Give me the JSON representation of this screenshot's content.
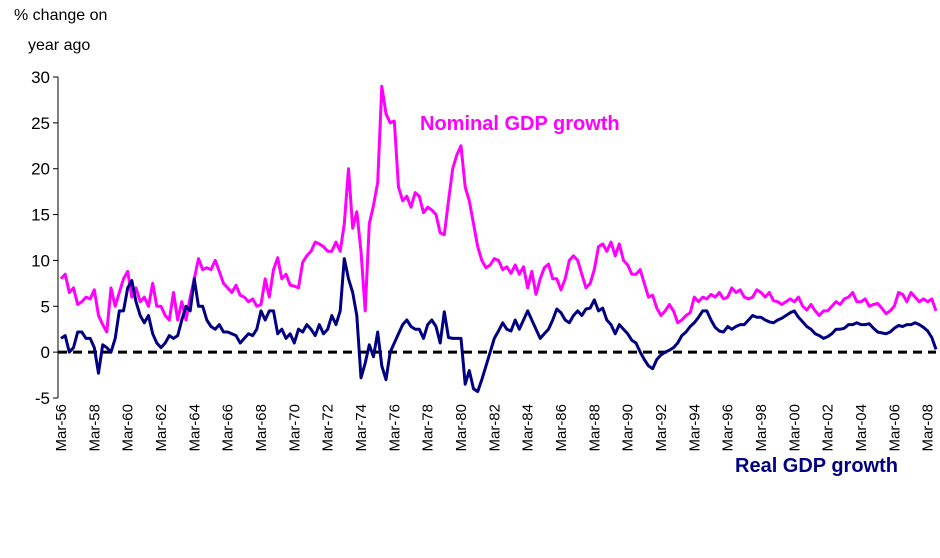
{
  "chart_data": {
    "type": "line",
    "ylabel_lines": [
      "% change on",
      "year ago"
    ],
    "ylim": [
      -5,
      30
    ],
    "yticks": [
      -5,
      0,
      5,
      10,
      15,
      20,
      25,
      30
    ],
    "hline": 0,
    "categories": [
      "Mar-56",
      null,
      null,
      null,
      null,
      null,
      null,
      null,
      "Mar-58",
      null,
      null,
      null,
      null,
      null,
      null,
      null,
      "Mar-60",
      null,
      null,
      null,
      null,
      null,
      null,
      null,
      "Mar-62",
      null,
      null,
      null,
      null,
      null,
      null,
      null,
      "Mar-64",
      null,
      null,
      null,
      null,
      null,
      null,
      null,
      "Mar-66",
      null,
      null,
      null,
      null,
      null,
      null,
      null,
      "Mar-68",
      null,
      null,
      null,
      null,
      null,
      null,
      null,
      "Mar-70",
      null,
      null,
      null,
      null,
      null,
      null,
      null,
      "Mar-72",
      null,
      null,
      null,
      null,
      null,
      null,
      null,
      "Mar-74",
      null,
      null,
      null,
      null,
      null,
      null,
      null,
      "Mar-76",
      null,
      null,
      null,
      null,
      null,
      null,
      null,
      "Mar-78",
      null,
      null,
      null,
      null,
      null,
      null,
      null,
      "Mar-80",
      null,
      null,
      null,
      null,
      null,
      null,
      null,
      "Mar-82",
      null,
      null,
      null,
      null,
      null,
      null,
      null,
      "Mar-84",
      null,
      null,
      null,
      null,
      null,
      null,
      null,
      "Mar-86",
      null,
      null,
      null,
      null,
      null,
      null,
      null,
      "Mar-88",
      null,
      null,
      null,
      null,
      null,
      null,
      null,
      "Mar-90",
      null,
      null,
      null,
      null,
      null,
      null,
      null,
      "Mar-92",
      null,
      null,
      null,
      null,
      null,
      null,
      null,
      "Mar-94",
      null,
      null,
      null,
      null,
      null,
      null,
      null,
      "Mar-96",
      null,
      null,
      null,
      null,
      null,
      null,
      null,
      "Mar-98",
      null,
      null,
      null,
      null,
      null,
      null,
      null,
      "Mar-00",
      null,
      null,
      null,
      null,
      null,
      null,
      null,
      "Mar-02",
      null,
      null,
      null,
      null,
      null,
      null,
      null,
      "Mar-04",
      null,
      null,
      null,
      null,
      null,
      null,
      null,
      "Mar-06",
      null,
      null,
      null,
      null,
      null,
      null,
      null,
      "Mar-08",
      null,
      null
    ],
    "series": [
      {
        "name": "Nominal GDP growth",
        "color": "#ff00ff",
        "values": [
          8,
          8.5,
          6.5,
          7,
          5.2,
          5.5,
          6,
          5.8,
          6.8,
          4,
          3,
          2.2,
          7,
          5,
          6.5,
          8,
          8.8,
          6,
          7,
          5.5,
          6,
          5,
          7.5,
          5,
          5,
          4,
          3.5,
          6.5,
          3.5,
          5.5,
          3.5,
          6,
          8,
          10.2,
          9,
          9.2,
          9,
          10,
          8.8,
          7.5,
          7,
          6.5,
          7.3,
          6.2,
          6,
          5.5,
          5.8,
          5,
          5.2,
          8,
          6,
          9,
          10.3,
          8,
          8.5,
          7.3,
          7.2,
          7,
          9.8,
          10.5,
          11,
          12,
          11.8,
          11.5,
          11,
          11,
          12,
          11,
          14,
          20,
          13.5,
          15.3,
          11,
          4.5,
          14,
          16,
          18.5,
          29,
          26,
          25,
          25.2,
          18,
          16.5,
          17,
          15.8,
          17.4,
          17,
          15.2,
          15.8,
          15.5,
          15,
          13,
          12.8,
          16.5,
          20,
          21.5,
          22.5,
          18,
          16.5,
          14,
          11.5,
          10,
          9.2,
          9.5,
          10.2,
          10,
          9,
          9.3,
          8.6,
          9.5,
          8.5,
          9.3,
          7,
          8.8,
          6.3,
          8,
          9.2,
          9.6,
          8,
          8,
          6.8,
          8,
          10,
          10.5,
          10,
          8.5,
          7,
          7.5,
          9,
          11.5,
          11.8,
          11,
          12,
          10.5,
          11.8,
          10,
          9.5,
          8.5,
          8.5,
          9,
          7.5,
          6,
          6.2,
          4.8,
          4,
          4.5,
          5.2,
          4.5,
          3.2,
          3.5,
          4,
          4.3,
          6,
          5.5,
          6,
          5.8,
          6.3,
          6,
          6.5,
          5.8,
          6,
          7,
          6.5,
          6.8,
          6,
          5.8,
          6,
          6.8,
          6.5,
          6,
          6.5,
          5.6,
          5.5,
          5.2,
          5.5,
          5.8,
          5.5,
          6,
          5,
          4.6,
          5.2,
          4.5,
          4,
          4.5,
          4.5,
          5,
          5.5,
          5.2,
          5.8,
          6,
          6.5,
          5.5,
          5.5,
          5.8,
          5,
          5.2,
          5.3,
          4.8,
          4.2,
          4.5,
          5,
          6.5,
          6.3,
          5.5,
          6.5,
          6,
          5.5,
          5.8,
          5.5,
          5.8,
          4.5
        ]
      },
      {
        "name": "Real GDP growth",
        "color": "#000080",
        "values": [
          1.5,
          1.8,
          0,
          0.5,
          2.2,
          2.2,
          1.5,
          1.5,
          0.5,
          -2.3,
          0.8,
          0.5,
          0,
          1.5,
          4.5,
          4.5,
          7,
          7.8,
          5.5,
          4,
          3.2,
          4,
          2,
          1,
          0.5,
          1,
          1.8,
          1.5,
          1.8,
          3.5,
          5,
          4.5,
          8,
          5,
          5,
          3.5,
          2.8,
          2.5,
          3,
          2.2,
          2.2,
          2,
          1.8,
          1,
          1.5,
          2,
          1.8,
          2.5,
          4.5,
          3.5,
          4.5,
          4.5,
          2,
          2.5,
          1.5,
          2,
          1,
          2.5,
          2.2,
          3,
          2.5,
          1.8,
          3,
          2,
          2.5,
          4,
          3,
          4.5,
          10.2,
          8,
          6.5,
          4,
          -2.8,
          -1.2,
          0.8,
          -0.5,
          2.2,
          -1.5,
          -3,
          0,
          1,
          2,
          3,
          3.5,
          2.8,
          2.5,
          2.5,
          1.5,
          3,
          3.5,
          2.8,
          1,
          4.4,
          1.6,
          1.5,
          1.5,
          1.5,
          -3.5,
          -2,
          -4,
          -4.3,
          -3,
          -1.5,
          0,
          1.5,
          2.3,
          3.2,
          2.5,
          2.3,
          3.5,
          2.5,
          3.5,
          4.5,
          3.5,
          2.5,
          1.5,
          2,
          2.5,
          3.5,
          4.7,
          4.3,
          3.5,
          3.2,
          4,
          4.5,
          4,
          4.7,
          4.8,
          5.7,
          4.5,
          4.8,
          3.5,
          3,
          2,
          3,
          2.5,
          2,
          1.3,
          1,
          0,
          -0.8,
          -1.5,
          -1.8,
          -0.8,
          -0.3,
          0,
          0.2,
          0.5,
          1,
          1.8,
          2.2,
          2.8,
          3.2,
          3.8,
          4.5,
          4.5,
          3.5,
          2.7,
          2.3,
          2.2,
          2.8,
          2.5,
          2.8,
          3,
          3,
          3.5,
          4,
          3.8,
          3.8,
          3.5,
          3.3,
          3.2,
          3.5,
          3.7,
          4,
          4.3,
          4.5,
          3.8,
          3.3,
          2.8,
          2.5,
          2,
          1.8,
          1.5,
          1.7,
          2,
          2.5,
          2.5,
          2.6,
          3,
          3,
          3.2,
          3,
          3,
          3.1,
          2.6,
          2.2,
          2.1,
          2,
          2.2,
          2.6,
          2.9,
          2.8,
          3,
          3,
          3.2,
          3,
          2.7,
          2.3,
          1.6,
          0.3
        ]
      }
    ]
  }
}
